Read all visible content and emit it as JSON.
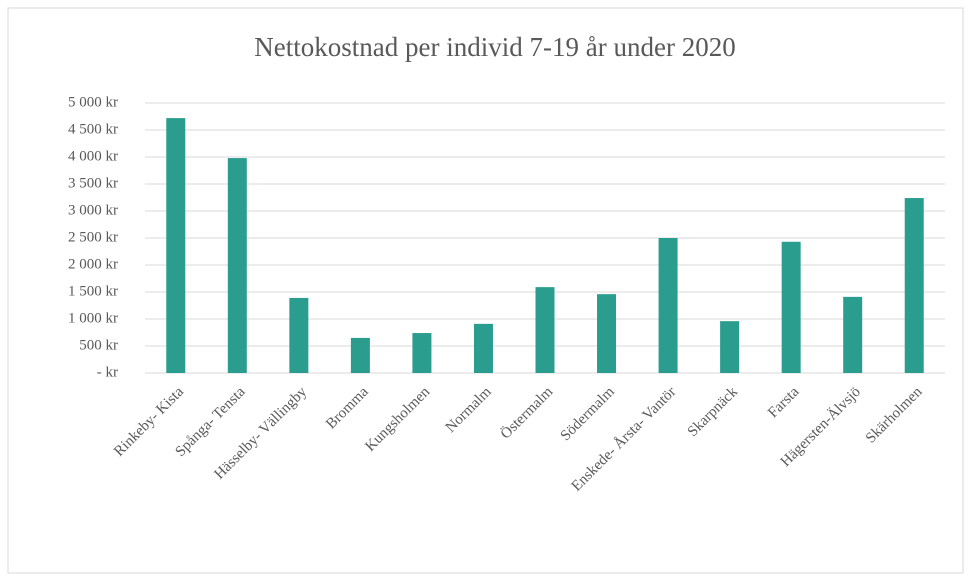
{
  "chart_data": {
    "type": "bar",
    "title": "Nettokostnad per individ 7-19 år under 2020",
    "categories": [
      "Rinkeby- Kista",
      "Spånga- Tensta",
      "Hässelby- Vällingby",
      "Bromma",
      "Kungsholmen",
      "Normalm",
      "Östermalm",
      "Södermalm",
      "Enskede- Årsta- Vantör",
      "Skarpnäck",
      "Farsta",
      "Hägersten-Älvsjö",
      "Skärholmen"
    ],
    "values": [
      4720,
      3980,
      1390,
      650,
      740,
      910,
      1590,
      1460,
      2500,
      960,
      2430,
      1410,
      3240
    ],
    "color": "#2a9d8f",
    "ylim": [
      0,
      5000
    ],
    "yticks": [
      {
        "value": 0,
        "label": "-  kr"
      },
      {
        "value": 500,
        "label": "500 kr"
      },
      {
        "value": 1000,
        "label": "1 000 kr"
      },
      {
        "value": 1500,
        "label": "1 500 kr"
      },
      {
        "value": 2000,
        "label": "2 000 kr"
      },
      {
        "value": 2500,
        "label": "2 500 kr"
      },
      {
        "value": 3000,
        "label": "3 000 kr"
      },
      {
        "value": 3500,
        "label": "3 500 kr"
      },
      {
        "value": 4000,
        "label": "4 000 kr"
      },
      {
        "value": 4500,
        "label": "4 500 kr"
      },
      {
        "value": 5000,
        "label": "5 000 kr"
      }
    ],
    "grid": true
  }
}
